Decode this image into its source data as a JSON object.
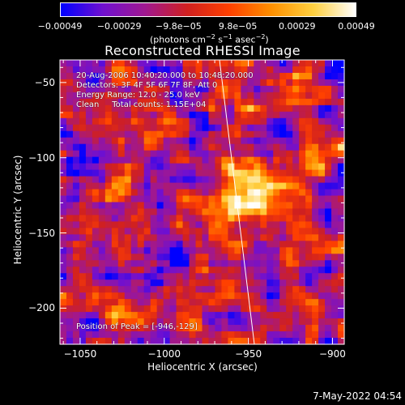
{
  "colorbar": {
    "tick_labels": [
      "−0.00049",
      "−0.00029",
      "−9.8e−05",
      "9.8e−05",
      "0.00029",
      "0.00049"
    ],
    "units_text": "(photons cm",
    "units_parts": [
      "(photons cm",
      "−2",
      " s",
      "−1",
      " asec",
      "−2",
      ")"
    ]
  },
  "title": "Reconstructed RHESSI Image",
  "annotations": {
    "line1": "20-Aug-2006 10:40:20.000 to 10:48:20.000",
    "line2": "Detectors: 3F 4F 5F 6F 7F 8F, Att 0",
    "line3": "Energy Range: 12.0 - 25.0 keV",
    "line4": "Clean     Total counts: 1.15E+04",
    "peak": "Position of Peak = [-946,-129]"
  },
  "axes": {
    "xlabel": "Heliocentric X (arcsec)",
    "ylabel": "Heliocentric Y (arcsec)",
    "xlim": [
      -1062,
      -893
    ],
    "ylim": [
      -224,
      -35
    ],
    "xticks": [
      -1050,
      -1000,
      -950,
      -900
    ],
    "xtick_labels": [
      "−1050",
      "−1000",
      "−950",
      "−900"
    ],
    "yticks": [
      -50,
      -100,
      -150,
      -200
    ],
    "ytick_labels": [
      "−50",
      "−100",
      "−150",
      "−200"
    ]
  },
  "peak_position": [
    -946,
    -129
  ],
  "colors": {
    "cmap": [
      "#0000ff",
      "#7010d0",
      "#a01890",
      "#d02020",
      "#ff4000",
      "#ff9000",
      "#ffd040",
      "#ffffff"
    ]
  },
  "timestamp": "7-May-2022 04:54"
}
